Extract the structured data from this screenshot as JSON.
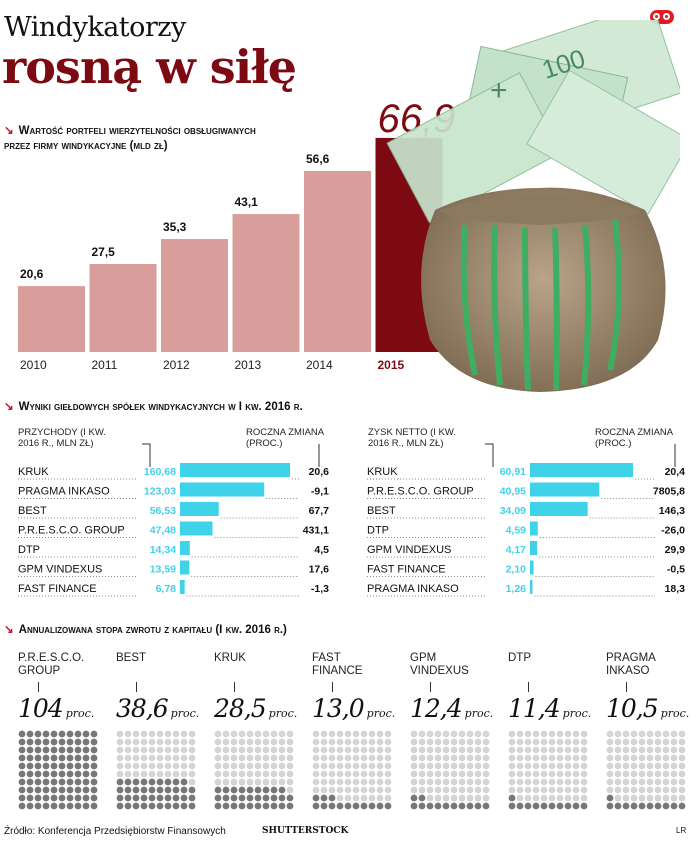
{
  "headline": {
    "line1": "Windykatorzy",
    "line2": "rosną w siłę"
  },
  "colors": {
    "bar_main": "#d89e9b",
    "bar_highlight": "#7d0a12",
    "accent_cyan": "#3fd3ea",
    "dot_dark": "#777777",
    "dot_light": "#d4d4d4"
  },
  "section1": {
    "title": "Wartość portfeli wierzytelności obsługiwanych przez firmy windykacyjne (mld zł)"
  },
  "section2": {
    "title": "Wyniki giełdowych spółek windykacyjnych w I kw. 2016 r.",
    "left": {
      "col1": "PRZYCHODY (I KW. 2016 R., MLN ZŁ)",
      "col2": "ROCZNA ZMIANA (PROC.)"
    },
    "right": {
      "col1": "ZYSK NETTO (I KW. 2016 R., MLN ZŁ)",
      "col2": "ROCZNA ZMIANA (PROC.)"
    }
  },
  "section3": {
    "title": "Annualizowana stopa zwrotu z kapitału (I kw. 2016 r.)",
    "unit": "proc."
  },
  "footer": {
    "source": "Źródło: Konferencja Przedsiębiorstw Finansowych",
    "credit": "SHUTTERSTOCK",
    "initials": "LR"
  },
  "chart_data": [
    {
      "type": "bar",
      "title": "Wartość portfeli wierzytelności obsługiwanych przez firmy windykacyjne (mld zł)",
      "categories": [
        "2010",
        "2011",
        "2012",
        "2013",
        "2014",
        "2015"
      ],
      "values": [
        20.6,
        27.5,
        35.3,
        43.1,
        56.6,
        66.9
      ],
      "labels": [
        "20,6",
        "27,5",
        "35,3",
        "43,1",
        "56,6",
        "66,9"
      ],
      "highlight": "2015"
    },
    {
      "type": "bar",
      "title": "Przychody (I kw. 2016 r., mln zł)",
      "categories": [
        "KRUK",
        "PRAGMA INKASO",
        "BEST",
        "P.R.E.S.C.O. GROUP",
        "DTP",
        "GPM VINDEXUS",
        "FAST FINANCE"
      ],
      "values": [
        160.68,
        123.03,
        56.53,
        47.48,
        14.34,
        13.59,
        6.78
      ],
      "labels": [
        "160,68",
        "123,03",
        "56,53",
        "47,48",
        "14,34",
        "13,59",
        "6,78"
      ],
      "change": [
        "20,6",
        "-9,1",
        "67,7",
        "431,1",
        "4,5",
        "17,6",
        "-1,3"
      ]
    },
    {
      "type": "bar",
      "title": "Zysk netto (I kw. 2016 r., mln zł)",
      "categories": [
        "KRUK",
        "P.R.E.S.C.O. GROUP",
        "BEST",
        "DTP",
        "GPM VINDEXUS",
        "FAST FINANCE",
        "PRAGMA INKASO"
      ],
      "values": [
        60.91,
        40.95,
        34.09,
        4.59,
        4.17,
        2.1,
        1.26
      ],
      "labels": [
        "60,91",
        "40,95",
        "34,09",
        "4,59",
        "4,17",
        "2,10",
        "1,26"
      ],
      "change": [
        "20,4",
        "7805,8",
        "146,3",
        "-26,0",
        "29,9",
        "-0,5",
        "18,3"
      ]
    },
    {
      "type": "bar",
      "title": "Annualizowana stopa zwrotu z kapitału (I kw. 2016 r.)",
      "categories": [
        "P.R.E.S.C.O. GROUP",
        "BEST",
        "KRUK",
        "FAST FINANCE",
        "GPM VINDEXUS",
        "DTP",
        "PRAGMA INKASO"
      ],
      "values": [
        104,
        38.6,
        28.5,
        13.0,
        12.4,
        11.4,
        10.5
      ],
      "labels": [
        "104",
        "38,6",
        "28,5",
        "13,0",
        "12,4",
        "11,4",
        "10,5"
      ]
    }
  ]
}
